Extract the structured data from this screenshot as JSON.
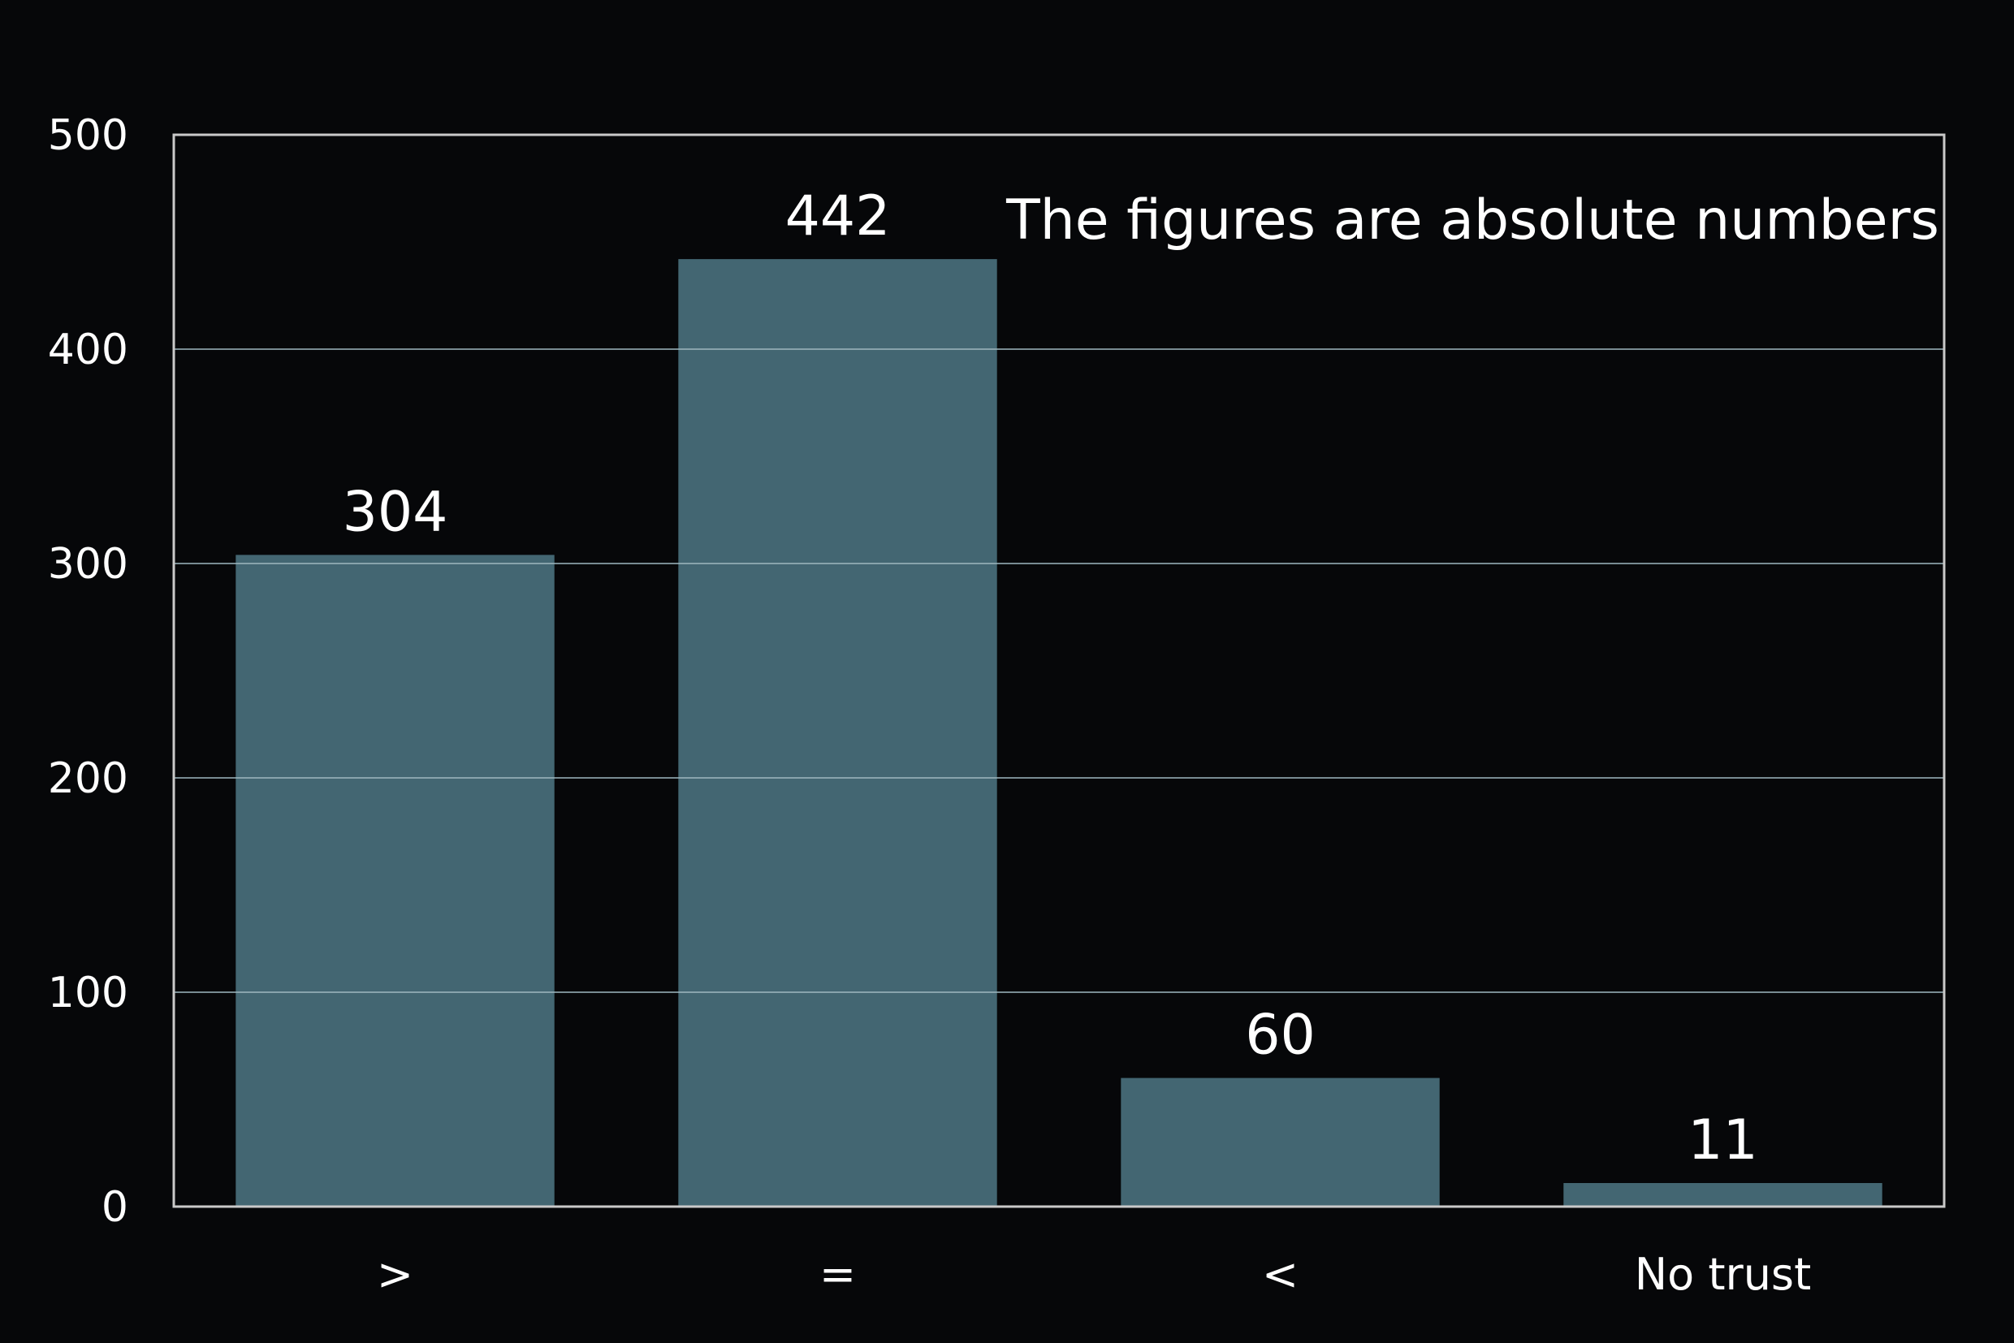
{
  "chart_data": {
    "type": "bar",
    "categories": [
      ">",
      "=",
      "<",
      "No trust"
    ],
    "values": [
      304,
      442,
      60,
      11
    ],
    "data_labels": [
      "304",
      "442",
      "60",
      "11"
    ],
    "title": "",
    "xlabel": "",
    "ylabel": "",
    "ylim": [
      0,
      500
    ],
    "yticks": [
      0,
      100,
      200,
      300,
      400,
      500
    ],
    "ytick_labels": [
      "0",
      "100",
      "200",
      "300",
      "400",
      "500"
    ],
    "grid": true,
    "annotation": "The figures are absolute numbers",
    "colors": {
      "background": "#060709",
      "bar": "#436672",
      "grid": "#9fb8c0",
      "frame": "#c9c9c9",
      "text": "#ffffff"
    }
  }
}
